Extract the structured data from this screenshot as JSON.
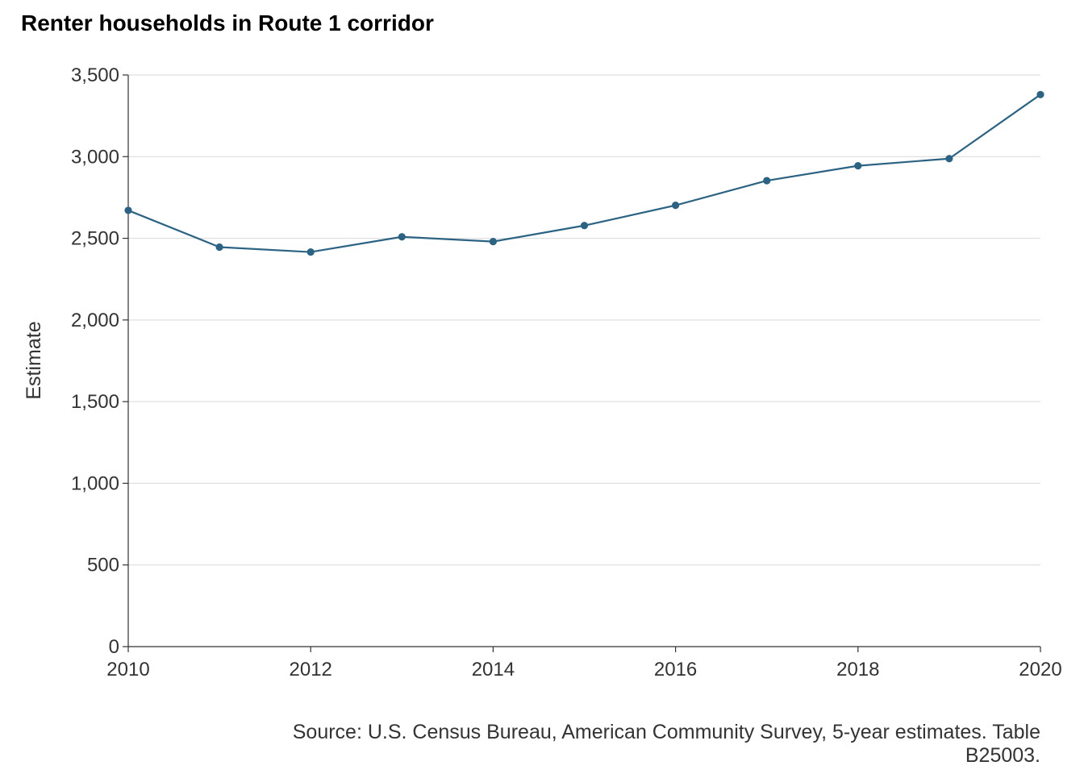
{
  "chart_data": {
    "type": "line",
    "title": "Renter households in Route 1 corridor",
    "xlabel": "",
    "ylabel": "Estimate",
    "x": [
      2010,
      2011,
      2012,
      2013,
      2014,
      2015,
      2016,
      2017,
      2018,
      2019,
      2020
    ],
    "series": [
      {
        "values": [
          2671,
          2446,
          2416,
          2509,
          2480,
          2578,
          2702,
          2853,
          2944,
          2988,
          3380
        ]
      }
    ],
    "xlim": [
      2010,
      2020
    ],
    "ylim": [
      0,
      3500
    ],
    "x_ticks": [
      2010,
      2012,
      2014,
      2016,
      2018,
      2020
    ],
    "x_tick_labels": [
      "2010",
      "2012",
      "2014",
      "2016",
      "2018",
      "2020"
    ],
    "y_ticks": [
      0,
      500,
      1000,
      1500,
      2000,
      2500,
      3000,
      3500
    ],
    "y_tick_labels": [
      "0",
      "500",
      "1,000",
      "1,500",
      "2,000",
      "2,500",
      "3,000",
      "3,500"
    ],
    "caption_lines": [
      "Source: U.S. Census Bureau, American Community Survey, 5-year estimates. Table",
      "B25003."
    ],
    "grid": "horizontal-major",
    "legend": "none",
    "colors": {
      "series": "#2c6383",
      "grid": "#d9d9d9",
      "axis": "#333333"
    }
  }
}
